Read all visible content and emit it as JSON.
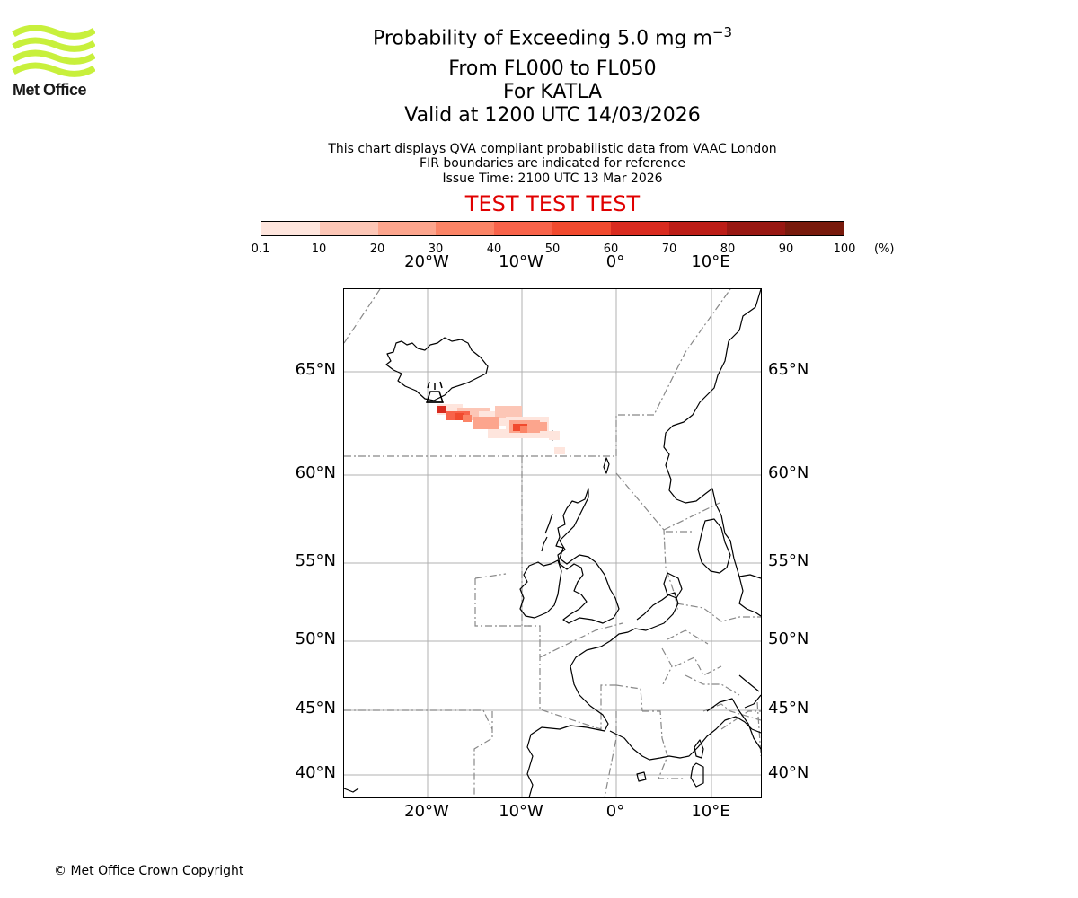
{
  "branding": {
    "logo_text": "Met Office",
    "logo_color": "#c8f03c",
    "logo_icon": "met-office-wave-logo"
  },
  "header": {
    "title_prefix": "Probability of Exceeding 5.0 mg m",
    "title_exponent": "−3",
    "levels": "From FL000 to FL050",
    "volcano": "For KATLA",
    "valid": "Valid at 1200 UTC 14/03/2026",
    "note_line1": "This chart displays QVA compliant probabilistic data from VAAC London",
    "note_line2": "FIR boundaries are indicated for reference",
    "issue_time": "Issue Time: 2100 UTC 13 Mar 2026",
    "test_banner": "TEST TEST TEST",
    "test_color": "#e00000"
  },
  "colorbar": {
    "unit": "(%)",
    "ticks": [
      "0.1",
      "10",
      "20",
      "30",
      "40",
      "50",
      "60",
      "70",
      "80",
      "90",
      "100"
    ],
    "colors": [
      "#fee5dd",
      "#fcc6b6",
      "#fca58d",
      "#fb8466",
      "#f8634a",
      "#f14a2e",
      "#d92b1f",
      "#bc1d17",
      "#981812",
      "#781a0c"
    ]
  },
  "map": {
    "lon_labels": [
      "20°W",
      "10°W",
      "0°",
      "10°E"
    ],
    "lat_labels": [
      "65°N",
      "60°N",
      "55°N",
      "50°N",
      "45°N",
      "40°N"
    ],
    "source_volcano": "KATLA",
    "source_icon": "volcano-icon"
  },
  "footer": {
    "copyright": "© Met Office Crown Copyright"
  }
}
